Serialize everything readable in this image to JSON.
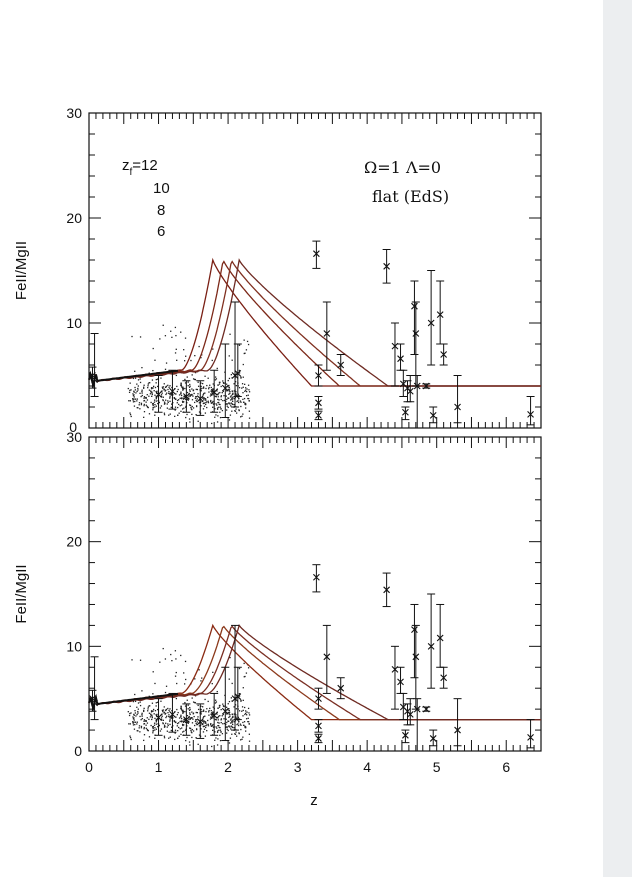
{
  "page": {
    "xlabel": "z"
  },
  "chart_data": [
    {
      "type": "line",
      "ylabel": "FeII/MgII",
      "xlim": [
        0,
        6.5
      ],
      "ylim": [
        0,
        30
      ],
      "yticks": [
        0,
        10,
        20,
        30
      ],
      "annotations": {
        "zf_label": "z",
        "zf_sub": "f",
        "zf_values": [
          "=12",
          "10",
          "8",
          "6"
        ],
        "cosmo": "Ω=1  Λ=0",
        "model": "flat (EdS)"
      },
      "model_peak": 16,
      "model_floor": 4,
      "series": [
        {
          "zpeak": 1.78,
          "zend": 3.2,
          "color": "#7a1f14"
        },
        {
          "zpeak": 1.93,
          "zend": 3.6,
          "color": "#7c2818"
        },
        {
          "zpeak": 2.05,
          "zend": 3.9,
          "color": "#803020"
        },
        {
          "zpeak": 2.16,
          "zend": 4.3,
          "color": "#6e2a22"
        }
      ]
    },
    {
      "type": "line",
      "ylabel": "FeII/MgII",
      "xlim": [
        0,
        6.5
      ],
      "ylim": [
        0,
        30
      ],
      "xticks": [
        0,
        1,
        2,
        3,
        4,
        5,
        6
      ],
      "yticks": [
        0,
        10,
        20,
        30
      ],
      "model_peak": 12,
      "model_floor": 3,
      "series": [
        {
          "zpeak": 1.78,
          "zend": 3.2,
          "color": "#8a2a12"
        },
        {
          "zpeak": 1.93,
          "zend": 3.6,
          "color": "#8c3a1c"
        },
        {
          "zpeak": 2.05,
          "zend": 3.9,
          "color": "#7a2e22"
        },
        {
          "zpeak": 2.16,
          "zend": 4.3,
          "color": "#6e2a22"
        }
      ]
    }
  ],
  "observations": [
    {
      "x": 0.08,
      "y": 4.6,
      "ylo": 3.0,
      "yhi": 9.0
    },
    {
      "x": 0.05,
      "y": 5.0,
      "ylo": 3.8,
      "yhi": 5.8
    },
    {
      "x": 1.0,
      "y": 3.2,
      "ylo": 1.5,
      "yhi": 5.0
    },
    {
      "x": 1.2,
      "y": 3.5,
      "ylo": 1.8,
      "yhi": 5.5
    },
    {
      "x": 1.4,
      "y": 3.0,
      "ylo": 1.5,
      "yhi": 4.5
    },
    {
      "x": 1.6,
      "y": 2.8,
      "ylo": 1.2,
      "yhi": 4.5
    },
    {
      "x": 1.8,
      "y": 3.4,
      "ylo": 1.5,
      "yhi": 5.5
    },
    {
      "x": 1.96,
      "y": 3.8,
      "ylo": 1.0,
      "yhi": 8.0
    },
    {
      "x": 2.1,
      "y": 5.0,
      "ylo": 2.0,
      "yhi": 12.0
    },
    {
      "x": 2.14,
      "y": 5.2,
      "ylo": 3.0,
      "yhi": 8.0
    },
    {
      "x": 3.27,
      "y": 16.6,
      "ylo": 15.2,
      "yhi": 17.8
    },
    {
      "x": 3.3,
      "y": 5.0,
      "ylo": 4.0,
      "yhi": 6.0
    },
    {
      "x": 3.3,
      "y": 2.4,
      "ylo": 1.8,
      "yhi": 3.0
    },
    {
      "x": 3.3,
      "y": 1.2,
      "ylo": 0.8,
      "yhi": 1.6
    },
    {
      "x": 3.42,
      "y": 9.0,
      "ylo": 5.5,
      "yhi": 12.0
    },
    {
      "x": 3.62,
      "y": 6.0,
      "ylo": 5.0,
      "yhi": 7.0
    },
    {
      "x": 4.28,
      "y": 15.4,
      "ylo": 13.8,
      "yhi": 17.0
    },
    {
      "x": 4.4,
      "y": 7.8,
      "ylo": 4.0,
      "yhi": 10.0
    },
    {
      "x": 4.48,
      "y": 6.6,
      "ylo": 5.5,
      "yhi": 8.0
    },
    {
      "x": 4.52,
      "y": 4.2,
      "ylo": 3.0,
      "yhi": 5.5
    },
    {
      "x": 4.55,
      "y": 1.5,
      "ylo": 0.8,
      "yhi": 2.0
    },
    {
      "x": 4.58,
      "y": 3.8,
      "ylo": 2.5,
      "yhi": 4.5
    },
    {
      "x": 4.62,
      "y": 3.5,
      "ylo": 2.5,
      "yhi": 5.0
    },
    {
      "x": 4.68,
      "y": 11.6,
      "ylo": 7.0,
      "yhi": 14.0
    },
    {
      "x": 4.7,
      "y": 9.0,
      "ylo": 4.0,
      "yhi": 12.0
    },
    {
      "x": 4.72,
      "y": 4.0,
      "ylo": 0.0,
      "yhi": 5.0
    },
    {
      "x": 4.85,
      "y": 4.0,
      "ylo": 3.8,
      "yhi": 4.2
    },
    {
      "x": 4.92,
      "y": 10.0,
      "ylo": 6.0,
      "yhi": 15.0
    },
    {
      "x": 4.95,
      "y": 1.2,
      "ylo": 0.5,
      "yhi": 2.0
    },
    {
      "x": 5.05,
      "y": 10.8,
      "ylo": 8.0,
      "yhi": 14.0
    },
    {
      "x": 5.1,
      "y": 7.0,
      "ylo": 6.0,
      "yhi": 8.0
    },
    {
      "x": 5.3,
      "y": 2.0,
      "ylo": 0.5,
      "yhi": 5.0
    },
    {
      "x": 6.35,
      "y": 1.3,
      "ylo": 0.3,
      "yhi": 3.0
    }
  ]
}
